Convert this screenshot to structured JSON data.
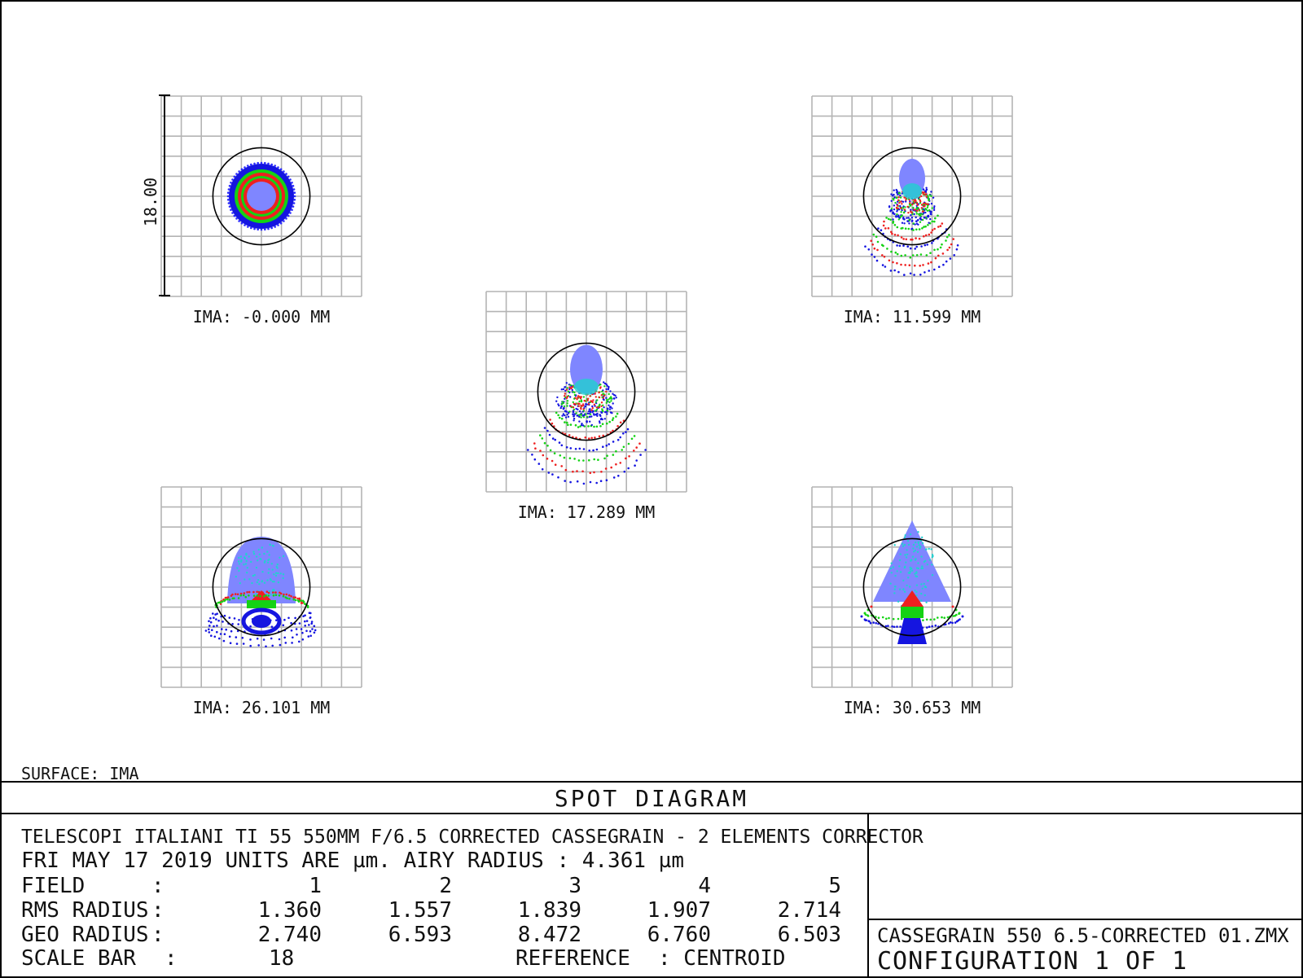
{
  "chart_data": {
    "type": "scatter",
    "title": "SPOT DIAGRAM",
    "surface": "SURFACE: IMA",
    "scale_bar_label": "18.00",
    "units": "µm",
    "airy_radius_um": 4.361,
    "reference": "CENTROID",
    "wavelength_colors": [
      "#1515e0",
      "#ee2020",
      "#14d214",
      "#7f86ff",
      "#22d0d0"
    ],
    "fields": [
      {
        "field": 1,
        "label": "IMA: -0.000 MM",
        "ima_mm": -0.0,
        "rms_radius_um": 1.36,
        "geo_radius_um": 2.74,
        "shape": "rings"
      },
      {
        "field": 2,
        "label": "IMA: 11.599 MM",
        "ima_mm": 11.599,
        "rms_radius_um": 1.557,
        "geo_radius_um": 6.593,
        "shape": "bell"
      },
      {
        "field": 3,
        "label": "IMA: 17.289 MM",
        "ima_mm": 17.289,
        "rms_radius_um": 1.839,
        "geo_radius_um": 8.472,
        "shape": "bell-wide"
      },
      {
        "field": 4,
        "label": "IMA: 26.101 MM",
        "ima_mm": 26.101,
        "rms_radius_um": 1.907,
        "geo_radius_um": 6.76,
        "shape": "dome"
      },
      {
        "field": 5,
        "label": "IMA: 30.653 MM",
        "ima_mm": 30.653,
        "rms_radius_um": 2.714,
        "geo_radius_um": 6.503,
        "shape": "tree"
      }
    ],
    "grid": true,
    "scale_bar_um": 18
  },
  "title_block": {
    "title": "SPOT DIAGRAM",
    "line1": "TELESCOPI ITALIANI TI 55 550MM F/6.5  CORRECTED CASSEGRAIN - 2 ELEMENTS CORRECTOR",
    "line2": "FRI MAY 17 2019  UNITS ARE µm.  AIRY RADIUS : 4.361 µm",
    "rows": [
      {
        "label": "FIELD",
        "sep": ":",
        "values": [
          "1",
          "2",
          "3",
          "4",
          "5"
        ]
      },
      {
        "label": "RMS RADIUS",
        "sep": ":",
        "values": [
          "1.360",
          "1.557",
          "1.839",
          "1.907",
          "2.714"
        ]
      },
      {
        "label": "GEO RADIUS",
        "sep": ":",
        "values": [
          "2.740",
          "6.593",
          "8.472",
          "6.760",
          "6.503"
        ]
      }
    ],
    "scale_bar_label": "SCALE BAR",
    "scale_bar_sep": ":",
    "scale_bar_value": "18",
    "reference_label": "REFERENCE",
    "reference_value": ": CENTROID",
    "file_name": "CASSEGRAIN 550 6.5-CORRECTED 01.ZMX",
    "configuration": "CONFIGURATION  1  OF  1"
  }
}
